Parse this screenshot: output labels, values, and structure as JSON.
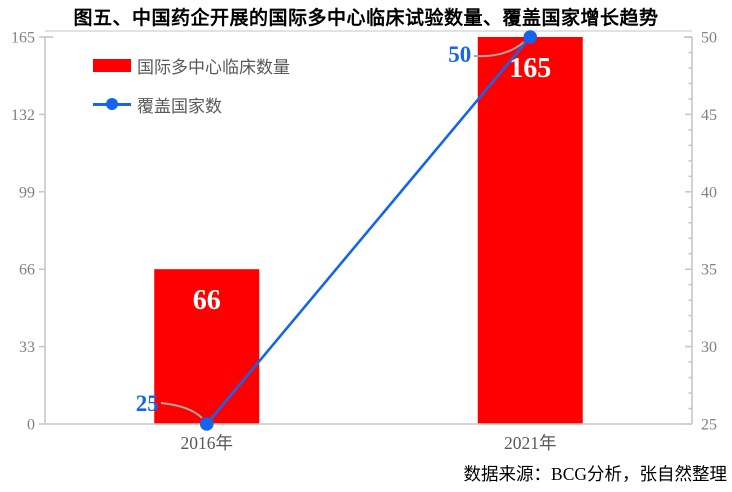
{
  "title": "图五、中国药企开展的国际多中心临床试验数量、覆盖国家增长趋势",
  "source": "数据来源：BCG分析，张自然整理",
  "legend": [
    {
      "label": "国际多中心临床数量",
      "type": "bar"
    },
    {
      "label": "覆盖国家数",
      "type": "line"
    }
  ],
  "chart_data": {
    "type": "bar",
    "subtype": "bar+line combo, dual axis",
    "title": "图五、中国药企开展的国际多中心临床试验数量、覆盖国家增长趋势",
    "categories": [
      "2016年",
      "2021年"
    ],
    "series": [
      {
        "name": "国际多中心临床数量",
        "type": "bar",
        "axis": "left",
        "values": [
          66,
          165
        ]
      },
      {
        "name": "覆盖国家数",
        "type": "line",
        "axis": "right",
        "values": [
          25,
          50
        ]
      }
    ],
    "bar_labels": [
      "66",
      "165"
    ],
    "line_labels": [
      "25",
      "50"
    ],
    "left_axis": {
      "range": [
        0,
        165
      ],
      "ticks": [
        0,
        33,
        66,
        99,
        132,
        165
      ]
    },
    "right_axis": {
      "range": [
        25,
        50
      ],
      "ticks": [
        25,
        30,
        35,
        40,
        45,
        50
      ],
      "minor_step": 1
    },
    "grid": "top border only, no interior gridlines",
    "legend_position": "top-left inside plot"
  },
  "colors": {
    "bar": "#FF0000",
    "line": "#1565EC",
    "bar_label": "#FFFFFF",
    "line_label": "#1565EC",
    "axis": "#C6C6C6",
    "top_border": "#D9D9D9",
    "tick_label": "#808080",
    "category_label": "#595959",
    "legend_label": "#595959",
    "callout_line": "#A6A6A6",
    "title": "#000000",
    "source": "#000000"
  }
}
